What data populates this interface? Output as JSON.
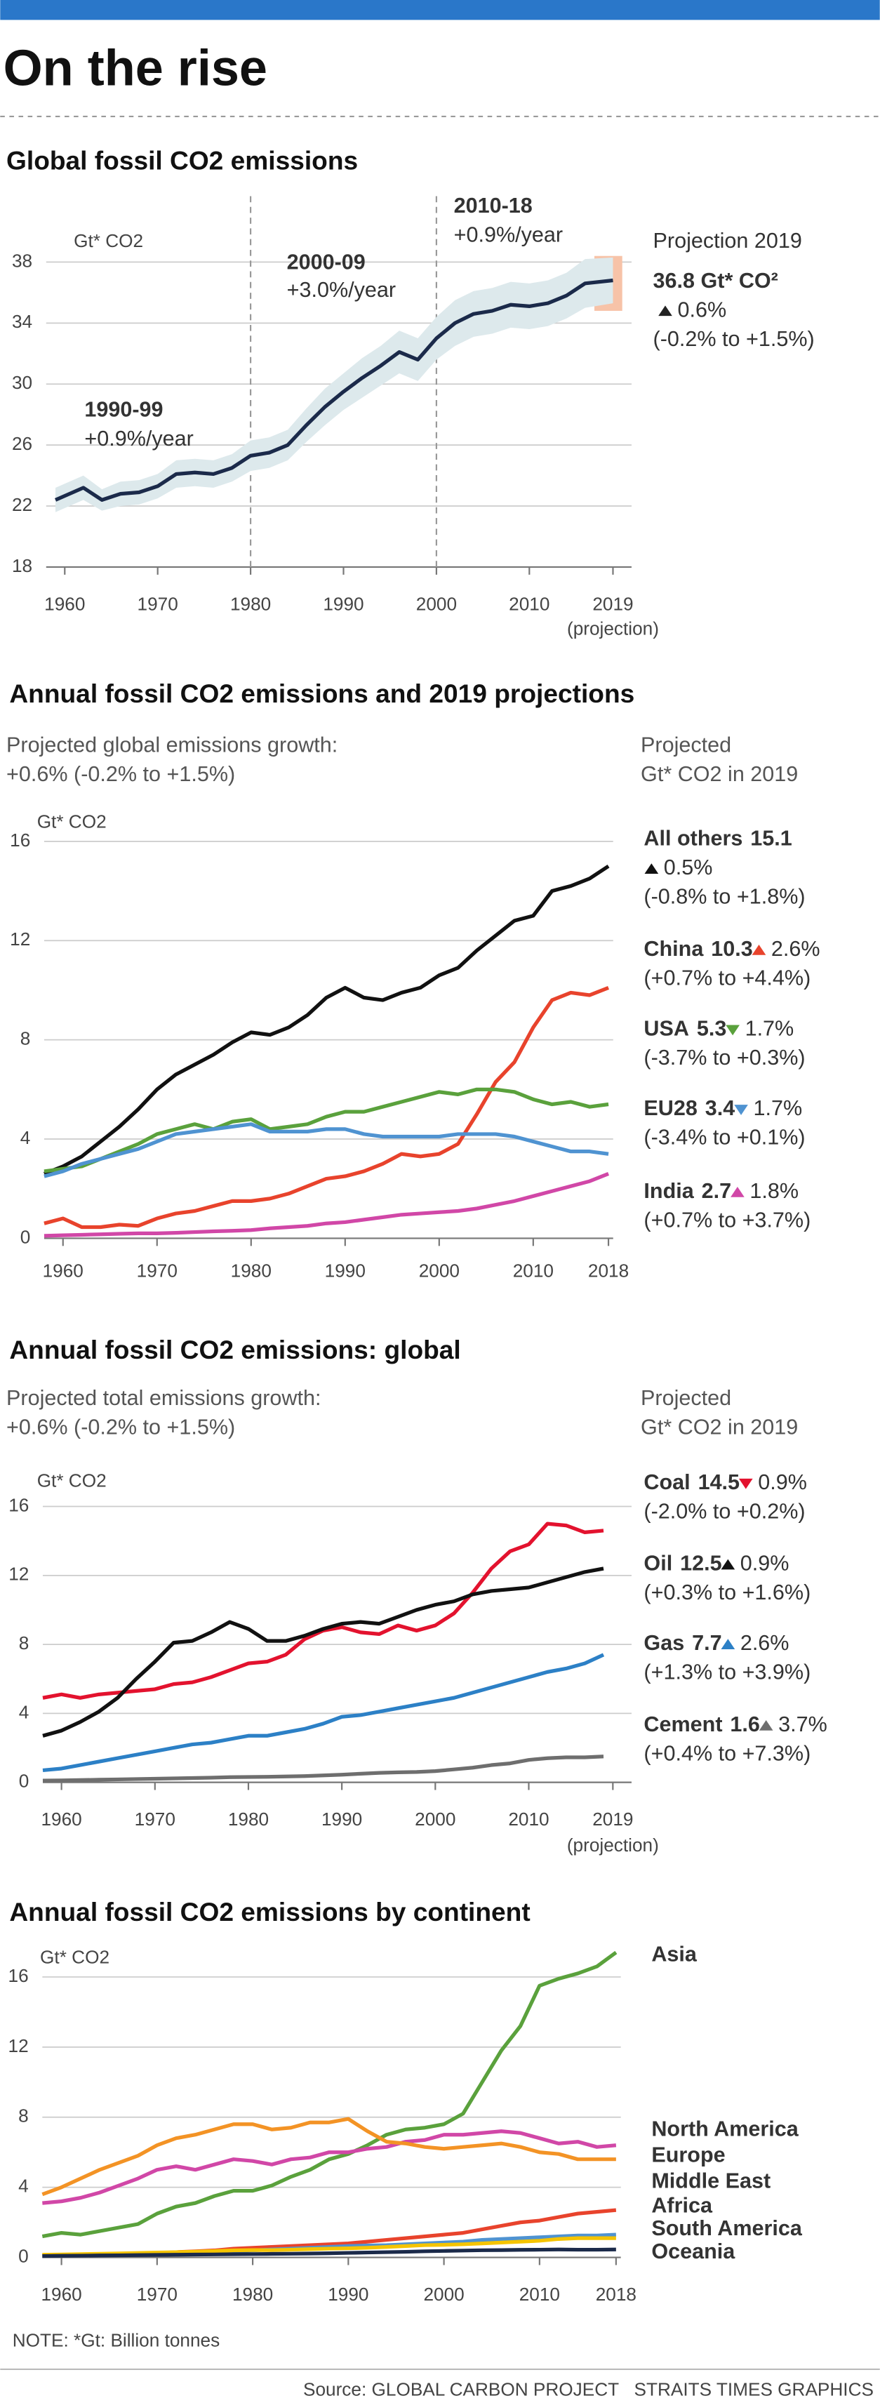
{
  "header": {
    "title": "On the rise"
  },
  "chart_data": [
    {
      "type": "line",
      "title": "Global fossil CO2 emissions",
      "y_label": "Gt* CO2",
      "x": [
        1959,
        1962,
        1964,
        1966,
        1968,
        1970,
        1972,
        1974,
        1976,
        1978,
        1980,
        1982,
        1984,
        1986,
        1988,
        1990,
        1992,
        1994,
        1996,
        1998,
        2000,
        2002,
        2004,
        2006,
        2008,
        2010,
        2012,
        2014,
        2016,
        2019
      ],
      "series": [
        {
          "color": "#1b2a4a",
          "band_color": "#dde9ec",
          "values": [
            22.4,
            23.2,
            22.4,
            22.8,
            22.9,
            23.3,
            24.1,
            24.2,
            24.1,
            24.5,
            25.3,
            25.5,
            26.0,
            27.3,
            28.5,
            29.5,
            30.4,
            31.2,
            32.1,
            31.6,
            33.0,
            34.0,
            34.6,
            34.8,
            35.2,
            35.1,
            35.3,
            35.8,
            36.6,
            36.8
          ],
          "lower": [
            21.6,
            22.4,
            21.7,
            22.0,
            22.1,
            22.5,
            23.2,
            23.3,
            23.2,
            23.6,
            24.3,
            24.5,
            25.0,
            26.2,
            27.3,
            28.3,
            29.1,
            29.9,
            30.7,
            30.2,
            31.6,
            32.5,
            33.1,
            33.3,
            33.7,
            33.6,
            33.8,
            34.3,
            35.0,
            35.3
          ],
          "upper": [
            23.2,
            24.0,
            23.1,
            23.6,
            23.7,
            24.1,
            25.0,
            25.1,
            25.0,
            25.4,
            26.3,
            26.5,
            27.0,
            28.4,
            29.7,
            30.7,
            31.7,
            32.5,
            33.5,
            33.0,
            34.4,
            35.5,
            36.1,
            36.3,
            36.7,
            36.6,
            36.8,
            37.3,
            38.2,
            38.3
          ]
        }
      ],
      "xlim": [
        1958,
        2021
      ],
      "ylim": [
        18,
        38
      ],
      "xticks": [
        1960,
        1970,
        1980,
        1990,
        2000,
        2010,
        2019
      ],
      "x_note": "(projection)",
      "yticks": [
        18,
        22,
        26,
        30,
        34,
        38
      ],
      "grid": true,
      "dividers": [
        1980,
        2000
      ],
      "annotations": [
        {
          "label": "1990-99",
          "text": "+0.9%/year"
        },
        {
          "label": "2000-09",
          "text": "+3.0%/year"
        },
        {
          "label": "2010-18",
          "text": "+0.9%/year"
        }
      ],
      "projection": {
        "title": "Projection 2019",
        "value": "36.8 Gt* CO²",
        "change": "0.6%",
        "direction": "up",
        "range": "(-0.2% to +1.5%)",
        "band": [
          34.8,
          38.4
        ],
        "color": "#f7c3a8"
      }
    },
    {
      "type": "line",
      "title": "Annual fossil CO2 emissions and 2019 projections",
      "subtitle": [
        "Projected global emissions growth:",
        "+0.6% (-0.2% to +1.5%)"
      ],
      "legend_title": [
        "Projected",
        "Gt* CO2 in 2019"
      ],
      "y_label": "Gt* CO2",
      "x": [
        1958,
        1960,
        1962,
        1964,
        1966,
        1968,
        1970,
        1972,
        1974,
        1976,
        1978,
        1980,
        1982,
        1984,
        1986,
        1988,
        1990,
        1992,
        1994,
        1996,
        1998,
        2000,
        2002,
        2004,
        2006,
        2008,
        2010,
        2012,
        2014,
        2016,
        2018
      ],
      "series": [
        {
          "name": "All others",
          "projection": 15.1,
          "change": "0.5%",
          "direction": "up",
          "range": "(-0.8% to +1.8%)",
          "color": "#111111",
          "values": [
            2.6,
            2.9,
            3.3,
            3.9,
            4.5,
            5.2,
            6.0,
            6.6,
            7.0,
            7.4,
            7.9,
            8.3,
            8.2,
            8.5,
            9.0,
            9.7,
            10.1,
            9.7,
            9.6,
            9.9,
            10.1,
            10.6,
            10.9,
            11.6,
            12.2,
            12.8,
            13.0,
            14.0,
            14.2,
            14.5,
            15.0
          ]
        },
        {
          "name": "China",
          "projection": 10.3,
          "change": "2.6%",
          "direction": "up",
          "range": "(+0.7% to +4.4%)",
          "color": "#e8432c",
          "values": [
            0.6,
            0.8,
            0.45,
            0.45,
            0.55,
            0.5,
            0.8,
            1.0,
            1.1,
            1.3,
            1.5,
            1.5,
            1.6,
            1.8,
            2.1,
            2.4,
            2.5,
            2.7,
            3.0,
            3.4,
            3.3,
            3.4,
            3.8,
            5.0,
            6.3,
            7.1,
            8.5,
            9.6,
            9.9,
            9.8,
            10.1
          ]
        },
        {
          "name": "USA",
          "projection": 5.3,
          "change": "1.7%",
          "direction": "down",
          "range": "(-3.7% to +0.3%)",
          "color": "#5aa13c",
          "values": [
            2.7,
            2.8,
            2.9,
            3.2,
            3.5,
            3.8,
            4.2,
            4.4,
            4.6,
            4.4,
            4.7,
            4.8,
            4.4,
            4.5,
            4.6,
            4.9,
            5.1,
            5.1,
            5.3,
            5.5,
            5.7,
            5.9,
            5.8,
            6.0,
            6.0,
            5.9,
            5.6,
            5.4,
            5.5,
            5.3,
            5.4
          ]
        },
        {
          "name": "EU28",
          "projection": 3.4,
          "change": "1.7%",
          "direction": "down",
          "range": "(-3.4% to +0.1%)",
          "color": "#4f93d1",
          "values": [
            2.5,
            2.7,
            3.0,
            3.2,
            3.4,
            3.6,
            3.9,
            4.2,
            4.3,
            4.4,
            4.5,
            4.6,
            4.3,
            4.3,
            4.3,
            4.4,
            4.4,
            4.2,
            4.1,
            4.1,
            4.1,
            4.1,
            4.2,
            4.2,
            4.2,
            4.1,
            3.9,
            3.7,
            3.5,
            3.5,
            3.4
          ]
        },
        {
          "name": "India",
          "projection": 2.7,
          "change": "1.8%",
          "direction": "up",
          "range": "(+0.7% to +3.7%)",
          "color": "#d147a7",
          "values": [
            0.1,
            0.12,
            0.14,
            0.16,
            0.18,
            0.2,
            0.2,
            0.22,
            0.25,
            0.28,
            0.3,
            0.33,
            0.4,
            0.45,
            0.5,
            0.6,
            0.65,
            0.75,
            0.85,
            0.95,
            1.0,
            1.05,
            1.1,
            1.2,
            1.35,
            1.5,
            1.7,
            1.9,
            2.1,
            2.3,
            2.6
          ]
        }
      ],
      "xlim": [
        1958,
        2018.5
      ],
      "ylim": [
        0,
        16
      ],
      "xticks": [
        1960,
        1970,
        1980,
        1990,
        2000,
        2010,
        2018
      ],
      "yticks": [
        0,
        4,
        8,
        12,
        16
      ],
      "grid": true
    },
    {
      "type": "line",
      "title": "Annual fossil CO2 emissions: global",
      "subtitle": [
        "Projected total emissions growth:",
        "+0.6% (-0.2% to +1.5%)"
      ],
      "legend_title": [
        "Projected",
        "Gt* CO2 in 2019"
      ],
      "y_label": "Gt* CO2",
      "x": [
        1958,
        1960,
        1962,
        1964,
        1966,
        1968,
        1970,
        1972,
        1974,
        1976,
        1978,
        1980,
        1982,
        1984,
        1986,
        1988,
        1990,
        1992,
        1994,
        1996,
        1998,
        2000,
        2002,
        2004,
        2006,
        2008,
        2010,
        2012,
        2014,
        2016,
        2018
      ],
      "series": [
        {
          "name": "Coal",
          "projection": 14.5,
          "change": "0.9%",
          "direction": "down",
          "range": "(-2.0% to +0.2%)",
          "color": "#e3122e",
          "values": [
            4.9,
            5.1,
            4.9,
            5.1,
            5.2,
            5.3,
            5.4,
            5.7,
            5.8,
            6.1,
            6.5,
            6.9,
            7.0,
            7.4,
            8.3,
            8.8,
            9.0,
            8.7,
            8.6,
            9.1,
            8.8,
            9.1,
            9.8,
            11.0,
            12.4,
            13.4,
            13.8,
            15.0,
            14.9,
            14.5,
            14.6
          ]
        },
        {
          "name": "Oil",
          "projection": 12.5,
          "change": "0.9%",
          "direction": "up",
          "range": "(+0.3% to +1.6%)",
          "color": "#111111",
          "values": [
            2.7,
            3.0,
            3.5,
            4.1,
            4.9,
            6.0,
            7.0,
            8.1,
            8.2,
            8.7,
            9.3,
            8.9,
            8.2,
            8.2,
            8.5,
            8.9,
            9.2,
            9.3,
            9.2,
            9.6,
            10.0,
            10.3,
            10.5,
            10.9,
            11.1,
            11.2,
            11.3,
            11.6,
            11.9,
            12.2,
            12.4
          ]
        },
        {
          "name": "Gas",
          "projection": 7.7,
          "change": "2.6%",
          "direction": "up",
          "range": "(+1.3% to +3.9%)",
          "color": "#2c80c6",
          "values": [
            0.7,
            0.8,
            1.0,
            1.2,
            1.4,
            1.6,
            1.8,
            2.0,
            2.2,
            2.3,
            2.5,
            2.7,
            2.7,
            2.9,
            3.1,
            3.4,
            3.8,
            3.9,
            4.1,
            4.3,
            4.5,
            4.7,
            4.9,
            5.2,
            5.5,
            5.8,
            6.1,
            6.4,
            6.6,
            6.9,
            7.4
          ]
        },
        {
          "name": "Cement",
          "projection": 1.6,
          "change": "3.7%",
          "direction": "up",
          "range": "(+0.4% to +7.3%)",
          "color": "#6e6e6e",
          "values": [
            0.1,
            0.11,
            0.13,
            0.15,
            0.17,
            0.19,
            0.21,
            0.23,
            0.25,
            0.27,
            0.3,
            0.31,
            0.32,
            0.34,
            0.36,
            0.4,
            0.44,
            0.5,
            0.55,
            0.58,
            0.6,
            0.65,
            0.75,
            0.85,
            1.0,
            1.1,
            1.3,
            1.4,
            1.45,
            1.45,
            1.5
          ]
        }
      ],
      "xlim": [
        1958,
        2021
      ],
      "ylim": [
        0,
        16
      ],
      "xticks": [
        1960,
        1970,
        1980,
        1990,
        2000,
        2010,
        2019
      ],
      "x_note": "(projection)",
      "yticks": [
        0,
        4,
        8,
        12,
        16
      ],
      "grid": true
    },
    {
      "type": "line",
      "title": "Annual fossil CO2 emissions by continent",
      "y_label": "Gt* CO2",
      "x": [
        1958,
        1960,
        1962,
        1964,
        1966,
        1968,
        1970,
        1972,
        1974,
        1976,
        1978,
        1980,
        1982,
        1984,
        1986,
        1988,
        1990,
        1992,
        1994,
        1996,
        1998,
        2000,
        2002,
        2004,
        2006,
        2008,
        2010,
        2012,
        2014,
        2016,
        2018
      ],
      "series": [
        {
          "name": "Asia",
          "color": "#5aa13c",
          "values": [
            1.2,
            1.4,
            1.3,
            1.5,
            1.7,
            1.9,
            2.5,
            2.9,
            3.1,
            3.5,
            3.8,
            3.8,
            4.1,
            4.6,
            5.0,
            5.6,
            5.9,
            6.4,
            7.0,
            7.3,
            7.4,
            7.6,
            8.2,
            10.0,
            11.8,
            13.2,
            15.5,
            15.9,
            16.2,
            16.6,
            17.4
          ]
        },
        {
          "name": "North America",
          "color": "#d147a7",
          "values": [
            3.1,
            3.2,
            3.4,
            3.7,
            4.1,
            4.5,
            5.0,
            5.2,
            5.0,
            5.3,
            5.6,
            5.5,
            5.3,
            5.6,
            5.7,
            6.0,
            6.0,
            6.2,
            6.3,
            6.6,
            6.7,
            7.0,
            7.0,
            7.1,
            7.2,
            7.1,
            6.8,
            6.5,
            6.6,
            6.3,
            6.4
          ]
        },
        {
          "name": "Europe",
          "color": "#f39325",
          "values": [
            3.6,
            4.0,
            4.5,
            5.0,
            5.4,
            5.8,
            6.4,
            6.8,
            7.0,
            7.3,
            7.6,
            7.6,
            7.3,
            7.4,
            7.7,
            7.7,
            7.9,
            7.2,
            6.6,
            6.5,
            6.3,
            6.2,
            6.3,
            6.4,
            6.5,
            6.3,
            6.0,
            5.9,
            5.6,
            5.6,
            5.6
          ]
        },
        {
          "name": "Middle East",
          "color": "#e8432c",
          "values": [
            0.1,
            0.12,
            0.14,
            0.16,
            0.18,
            0.2,
            0.25,
            0.3,
            0.35,
            0.4,
            0.5,
            0.55,
            0.6,
            0.65,
            0.7,
            0.75,
            0.8,
            0.9,
            1.0,
            1.1,
            1.2,
            1.3,
            1.4,
            1.6,
            1.8,
            2.0,
            2.1,
            2.3,
            2.5,
            2.6,
            2.7
          ]
        },
        {
          "name": "Africa",
          "color": "#4f93d1",
          "values": [
            0.1,
            0.12,
            0.13,
            0.15,
            0.17,
            0.2,
            0.22,
            0.25,
            0.28,
            0.3,
            0.35,
            0.4,
            0.45,
            0.5,
            0.55,
            0.6,
            0.65,
            0.68,
            0.7,
            0.75,
            0.8,
            0.85,
            0.9,
            1.0,
            1.05,
            1.1,
            1.15,
            1.2,
            1.25,
            1.25,
            1.3
          ]
        },
        {
          "name": "South America",
          "color": "#f5c400",
          "values": [
            0.15,
            0.17,
            0.19,
            0.21,
            0.23,
            0.25,
            0.28,
            0.3,
            0.33,
            0.36,
            0.4,
            0.42,
            0.42,
            0.44,
            0.47,
            0.5,
            0.52,
            0.55,
            0.6,
            0.65,
            0.7,
            0.72,
            0.75,
            0.8,
            0.85,
            0.9,
            0.95,
            1.05,
            1.1,
            1.1,
            1.1
          ]
        },
        {
          "name": "Oceania",
          "color": "#1b2a4a",
          "values": [
            0.08,
            0.09,
            0.1,
            0.11,
            0.12,
            0.13,
            0.14,
            0.15,
            0.16,
            0.17,
            0.18,
            0.19,
            0.2,
            0.21,
            0.22,
            0.24,
            0.26,
            0.28,
            0.3,
            0.32,
            0.35,
            0.37,
            0.39,
            0.41,
            0.42,
            0.43,
            0.44,
            0.45,
            0.44,
            0.44,
            0.45
          ]
        }
      ],
      "xlim": [
        1958,
        2018.5
      ],
      "ylim": [
        0,
        16
      ],
      "xticks": [
        1960,
        1970,
        1980,
        1990,
        2000,
        2010,
        2018
      ],
      "yticks": [
        0,
        4,
        8,
        12,
        16
      ],
      "grid": true
    }
  ],
  "note": "NOTE: *Gt: Billion tonnes",
  "source": "Source: GLOBAL CARBON PROJECT   STRAITS TIMES GRAPHICS"
}
